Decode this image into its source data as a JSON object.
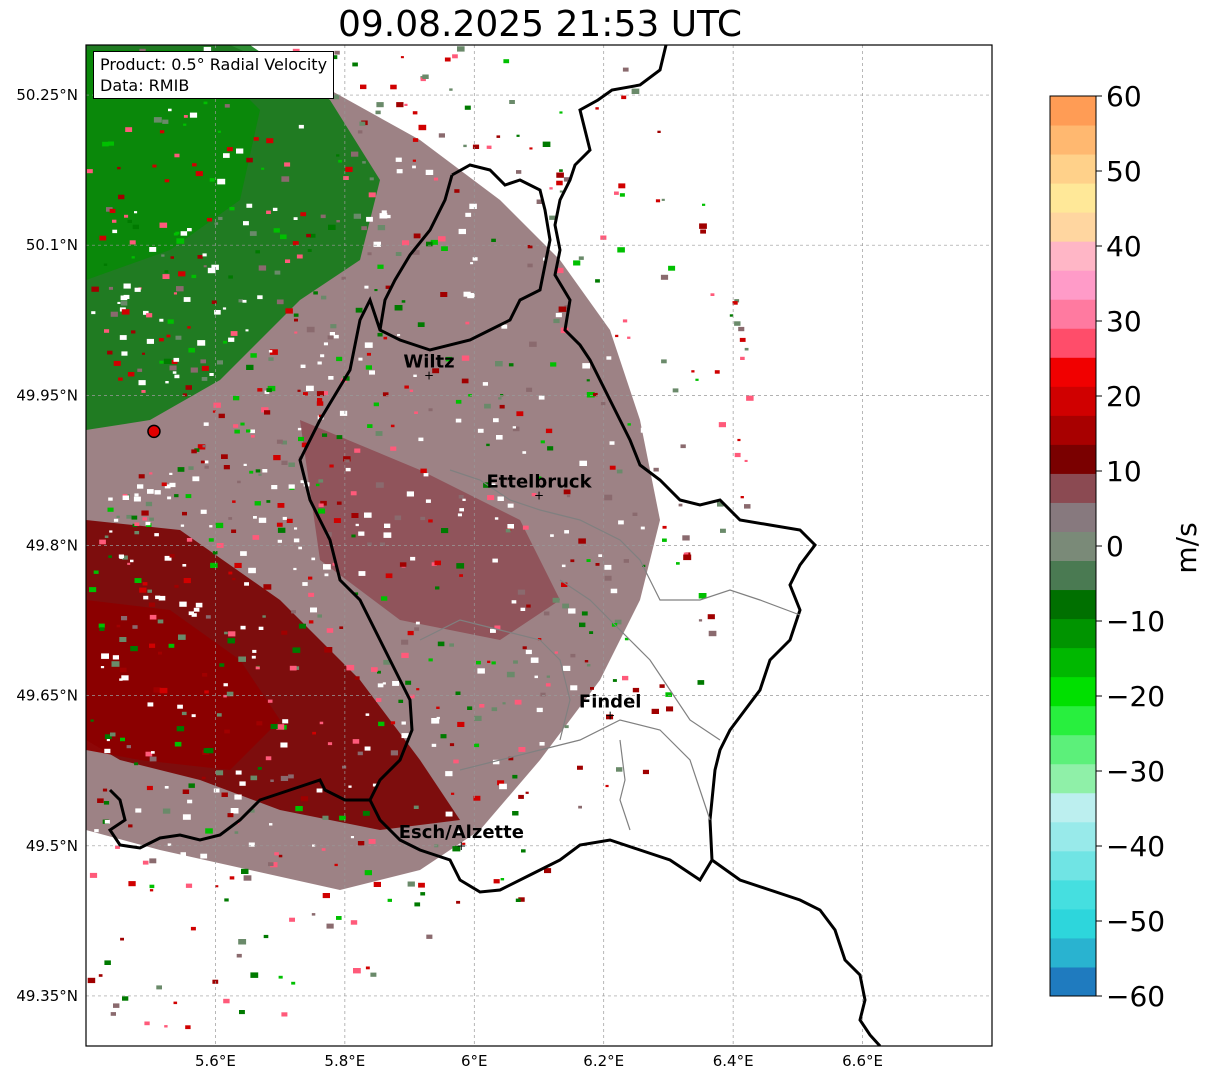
{
  "title": "09.08.2025 21:53 UTC",
  "info_box": {
    "product": "Product: 0.5° Radial Velocity",
    "data": "Data: RMIB"
  },
  "map": {
    "lon_range": [
      5.4,
      6.8
    ],
    "lat_range": [
      49.3,
      50.3
    ],
    "lon_ticks": [
      "5.6°E",
      "5.8°E",
      "6°E",
      "6.2°E",
      "6.4°E",
      "6.6°E"
    ],
    "lat_ticks": [
      "50.25°N",
      "50.1°N",
      "49.95°N",
      "49.8°N",
      "49.65°N",
      "49.5°N",
      "49.35°N"
    ],
    "grid": true,
    "radar_site": {
      "lon": 5.505,
      "lat": 49.914,
      "color": "#e00000"
    }
  },
  "cities": [
    {
      "name": "Wiltz",
      "lon": 5.93,
      "lat": 49.97
    },
    {
      "name": "Ettelbruck",
      "lon": 6.1,
      "lat": 49.85
    },
    {
      "name": "Findel",
      "lon": 6.21,
      "lat": 49.63
    },
    {
      "name": "Esch/Alzette",
      "lon": 5.98,
      "lat": 49.5
    }
  ],
  "colorbar": {
    "label": "m/s",
    "min": -60,
    "max": 60,
    "ticks": [
      "60",
      "50",
      "40",
      "30",
      "20",
      "10",
      "0",
      "−10",
      "−20",
      "−30",
      "−40",
      "−50",
      "−60"
    ],
    "colors_low_to_high": [
      "#1f7bbf",
      "#29b3d0",
      "#2dd6dc",
      "#45dfe0",
      "#70e4e4",
      "#98eaea",
      "#bcefef",
      "#8ff0a8",
      "#5cf07a",
      "#28ef3e",
      "#00e000",
      "#00b800",
      "#009400",
      "#007000",
      "#4a7a52",
      "#7a8a78",
      "#87797e",
      "#8b4a52",
      "#7a0000",
      "#a80000",
      "#d00000",
      "#f10000",
      "#ff4d6a",
      "#ff7aa0",
      "#ff9bc8",
      "#ffb6c6",
      "#ffd6a0",
      "#ffe898",
      "#ffd18a",
      "#ffb870",
      "#ff9c55"
    ]
  }
}
